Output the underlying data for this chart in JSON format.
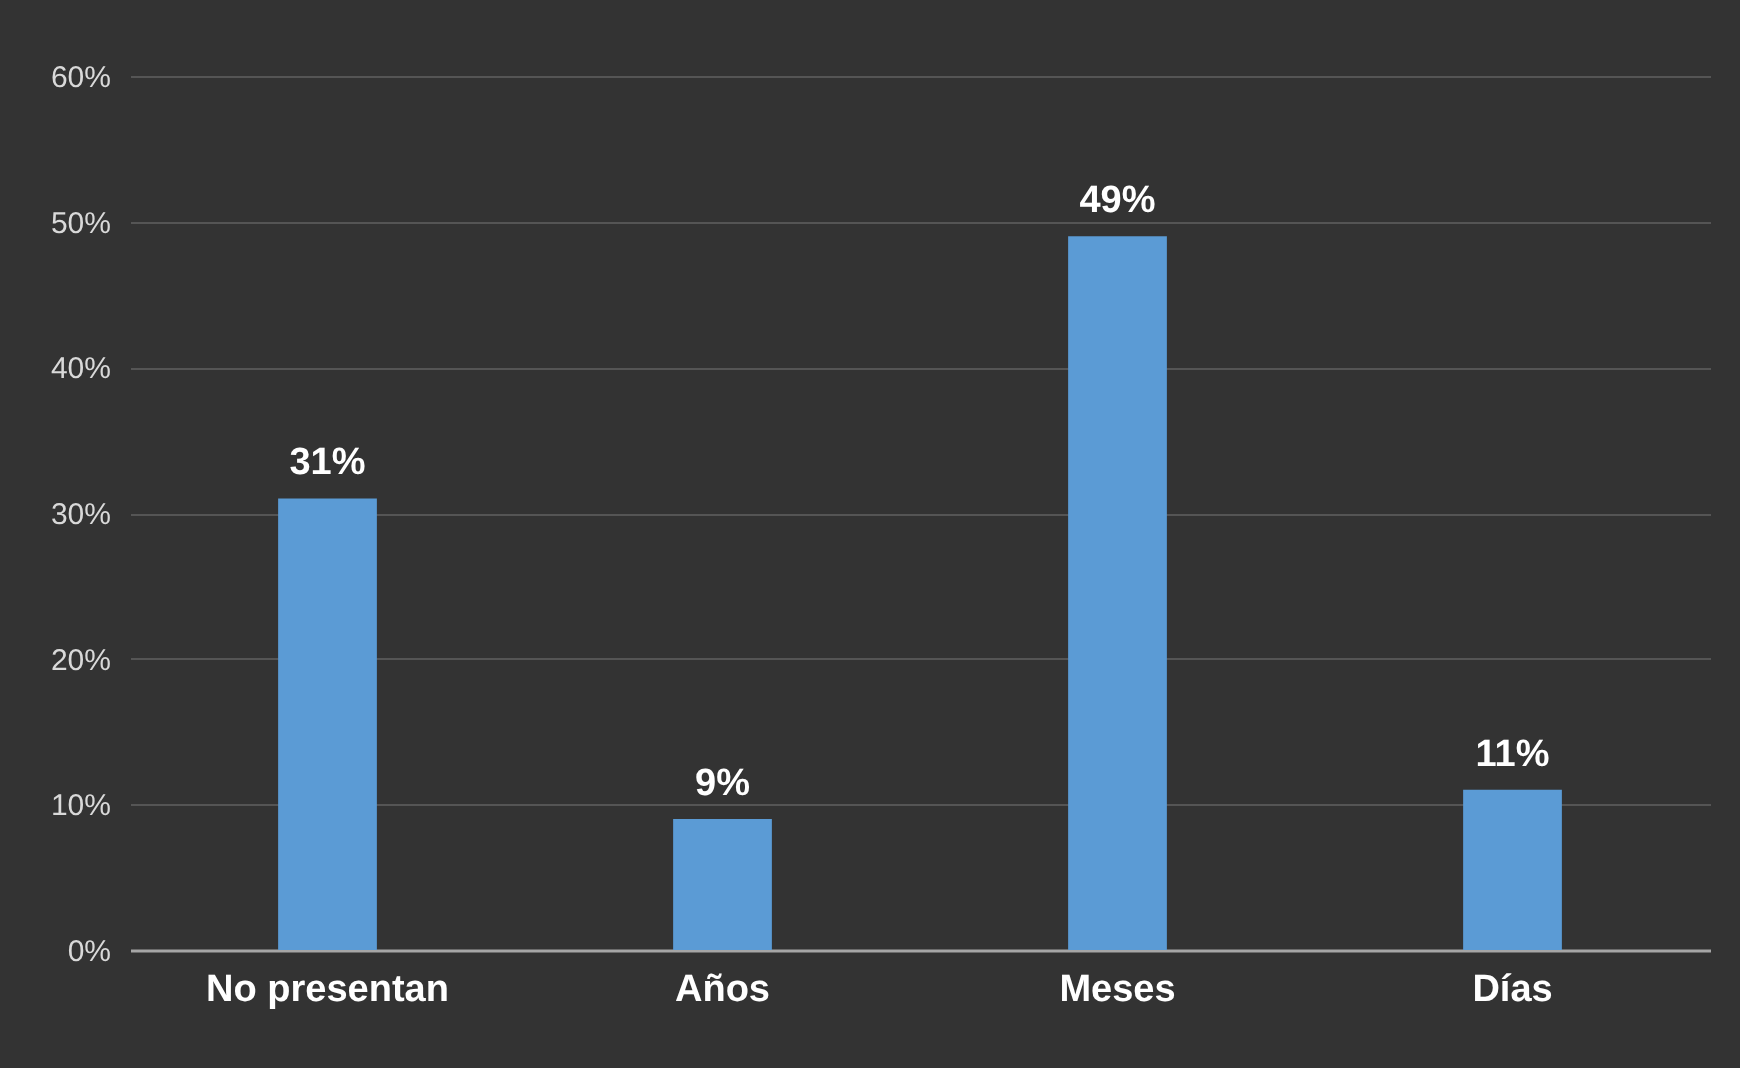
{
  "chart_data": {
    "type": "bar",
    "categories": [
      "No presentan",
      "Años",
      "Meses",
      "Días"
    ],
    "values": [
      31,
      9,
      49,
      11
    ],
    "value_labels": [
      "31%",
      "9%",
      "49%",
      "11%"
    ],
    "color": "#5b9bd5",
    "ylim": [
      0,
      60
    ],
    "yticks": [
      {
        "value": 0,
        "label": "0%"
      },
      {
        "value": 10,
        "label": "10%"
      },
      {
        "value": 20,
        "label": "20%"
      },
      {
        "value": 30,
        "label": "30%"
      },
      {
        "value": 40,
        "label": "40%"
      },
      {
        "value": 50,
        "label": "50%"
      },
      {
        "value": 60,
        "label": "60%"
      }
    ],
    "grid": "y"
  }
}
